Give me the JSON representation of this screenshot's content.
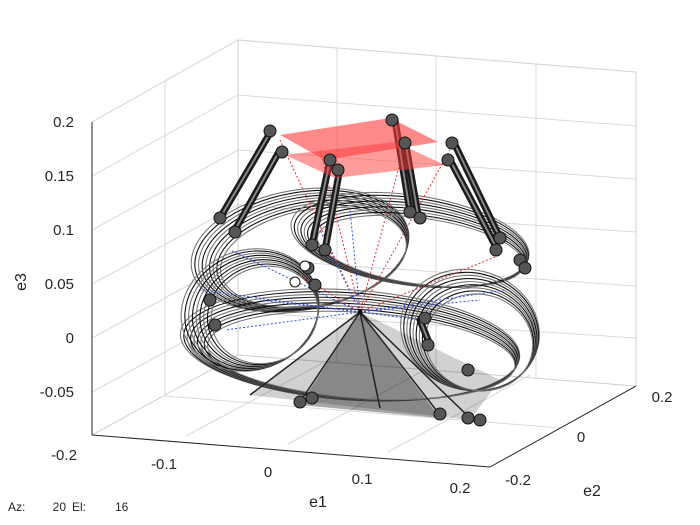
{
  "figure": {
    "axes": {
      "x_label": "e1",
      "y_label": "e2",
      "z_label": "e3",
      "x_ticks": [
        "-0.2",
        "-0.1",
        "0",
        "0.1",
        "0.2"
      ],
      "y_ticks": [
        "-0.2",
        "0",
        "0.2"
      ],
      "z_ticks": [
        "0.2",
        "0.15",
        "0.1",
        "0.05",
        "0",
        "-0.05"
      ],
      "grid": true
    },
    "view": {
      "az_label": "Az:",
      "az_value": "20",
      "el_label": "El:",
      "el_value": "16"
    },
    "colors": {
      "platform": "#ff3b3b",
      "legs": "#1a1a1a",
      "joints": "#555555",
      "red_rays": "#e03030",
      "blue_rays": "#3050e0",
      "grid": "#d9d9d9",
      "axis": "#262626"
    }
  }
}
